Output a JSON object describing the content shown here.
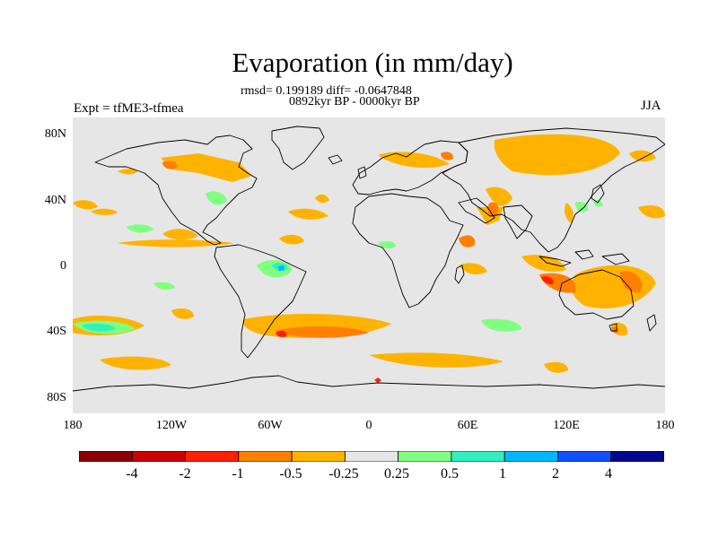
{
  "title": "Evaporation (in mm/day)",
  "stats": "rmsd= 0.199189 diff= -0.0647848",
  "period": "0892kyr BP - 0000kyr BP",
  "left_label": "Expt = tfME3-tfmea",
  "right_label": "JJA",
  "map": {
    "background_color": "#e6e6e6",
    "lat_labels": [
      "80N",
      "40N",
      "0",
      "40S",
      "80S"
    ],
    "lon_labels": [
      "180",
      "120W",
      "60W",
      "0",
      "60E",
      "120E",
      "180"
    ]
  },
  "colorbar": {
    "colors": [
      "#8b0000",
      "#cc0000",
      "#ff2000",
      "#ff7f00",
      "#ffb300",
      "#e6e6e6",
      "#80ff80",
      "#30f0c0",
      "#00b8ff",
      "#1050ff",
      "#000a8f"
    ],
    "labels": [
      "-4",
      "-2",
      "-1",
      "-0.5",
      "-0.25",
      "0.25",
      "0.5",
      "1",
      "2",
      "4"
    ]
  }
}
